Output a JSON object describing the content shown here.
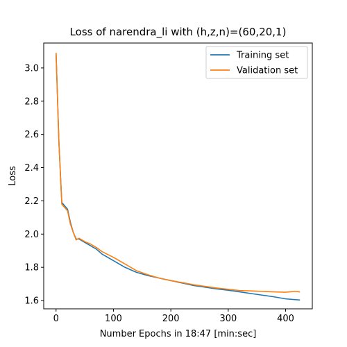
{
  "chart_data": {
    "type": "line",
    "title": "Loss of narendra_li with (h,z,n)=(60,20,1)",
    "xlabel": "Number Epochs in 18:47 [min:sec]",
    "ylabel": "Loss",
    "xlim": [
      -21.5,
      446.5
    ],
    "ylim": [
      1.55,
      3.15
    ],
    "xticks": [
      0,
      100,
      200,
      300,
      400
    ],
    "yticks": [
      1.6,
      1.8,
      2.0,
      2.2,
      2.4,
      2.6,
      2.8,
      3.0
    ],
    "ytick_labels": [
      "1.6",
      "1.8",
      "2.0",
      "2.2",
      "2.4",
      "2.6",
      "2.8",
      "3.0"
    ],
    "grid": false,
    "legend_position": "top-right",
    "series": [
      {
        "name": "Training set",
        "color": "#1f77b4",
        "x": [
          0,
          5,
          10,
          20,
          25,
          30,
          35,
          40,
          45,
          50,
          60,
          70,
          80,
          100,
          120,
          140,
          160,
          180,
          200,
          220,
          240,
          260,
          280,
          300,
          320,
          340,
          360,
          380,
          400,
          425
        ],
        "y": [
          3.09,
          2.55,
          2.19,
          2.15,
          2.07,
          2.01,
          1.97,
          1.97,
          1.96,
          1.95,
          1.93,
          1.91,
          1.88,
          1.84,
          1.8,
          1.77,
          1.75,
          1.735,
          1.72,
          1.705,
          1.69,
          1.68,
          1.67,
          1.662,
          1.652,
          1.642,
          1.632,
          1.622,
          1.61,
          1.603
        ]
      },
      {
        "name": "Validation set",
        "color": "#ff7f0e",
        "x": [
          0,
          5,
          10,
          20,
          25,
          30,
          35,
          40,
          45,
          50,
          60,
          70,
          80,
          100,
          120,
          140,
          160,
          180,
          200,
          220,
          240,
          260,
          280,
          300,
          320,
          340,
          360,
          380,
          400,
          410,
          420,
          425
        ],
        "y": [
          3.09,
          2.55,
          2.18,
          2.14,
          2.06,
          2.01,
          1.965,
          1.975,
          1.965,
          1.955,
          1.94,
          1.92,
          1.895,
          1.86,
          1.82,
          1.78,
          1.755,
          1.735,
          1.72,
          1.708,
          1.695,
          1.685,
          1.675,
          1.668,
          1.66,
          1.658,
          1.655,
          1.652,
          1.65,
          1.653,
          1.655,
          1.651
        ]
      }
    ]
  }
}
